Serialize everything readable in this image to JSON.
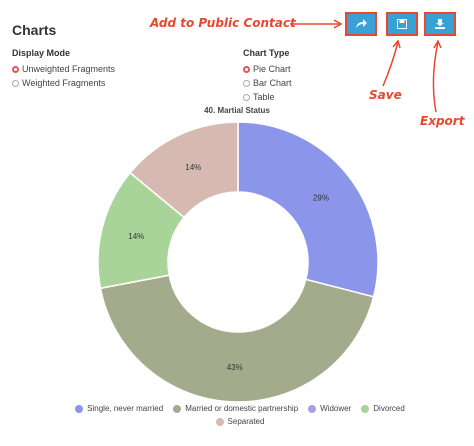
{
  "header": {
    "title": "Charts"
  },
  "display_mode": {
    "label": "Display Mode",
    "options": [
      "Unweighted Fragments",
      "Weighted Fragments"
    ]
  },
  "chart_type": {
    "label": "Chart Type",
    "options": [
      "Pie Chart",
      "Bar Chart",
      "Table"
    ]
  },
  "annotations": {
    "add": "Add to Public Contact",
    "save": "Save",
    "export": "Export"
  },
  "chart_data": {
    "type": "donut",
    "title": "40. Martial Status",
    "categories": [
      "Single, never married",
      "Married or domestic partnership",
      "Widower",
      "Divorced",
      "Separated"
    ],
    "values": [
      29,
      43,
      0,
      14,
      14
    ],
    "value_labels": [
      "29%",
      "43%",
      null,
      "14%",
      "14%"
    ],
    "colors": [
      "#8b95e9",
      "#a4ab8d",
      "#ab9ce9",
      "#a8d49a",
      "#d6b9b1"
    ],
    "legend": "bottom"
  }
}
